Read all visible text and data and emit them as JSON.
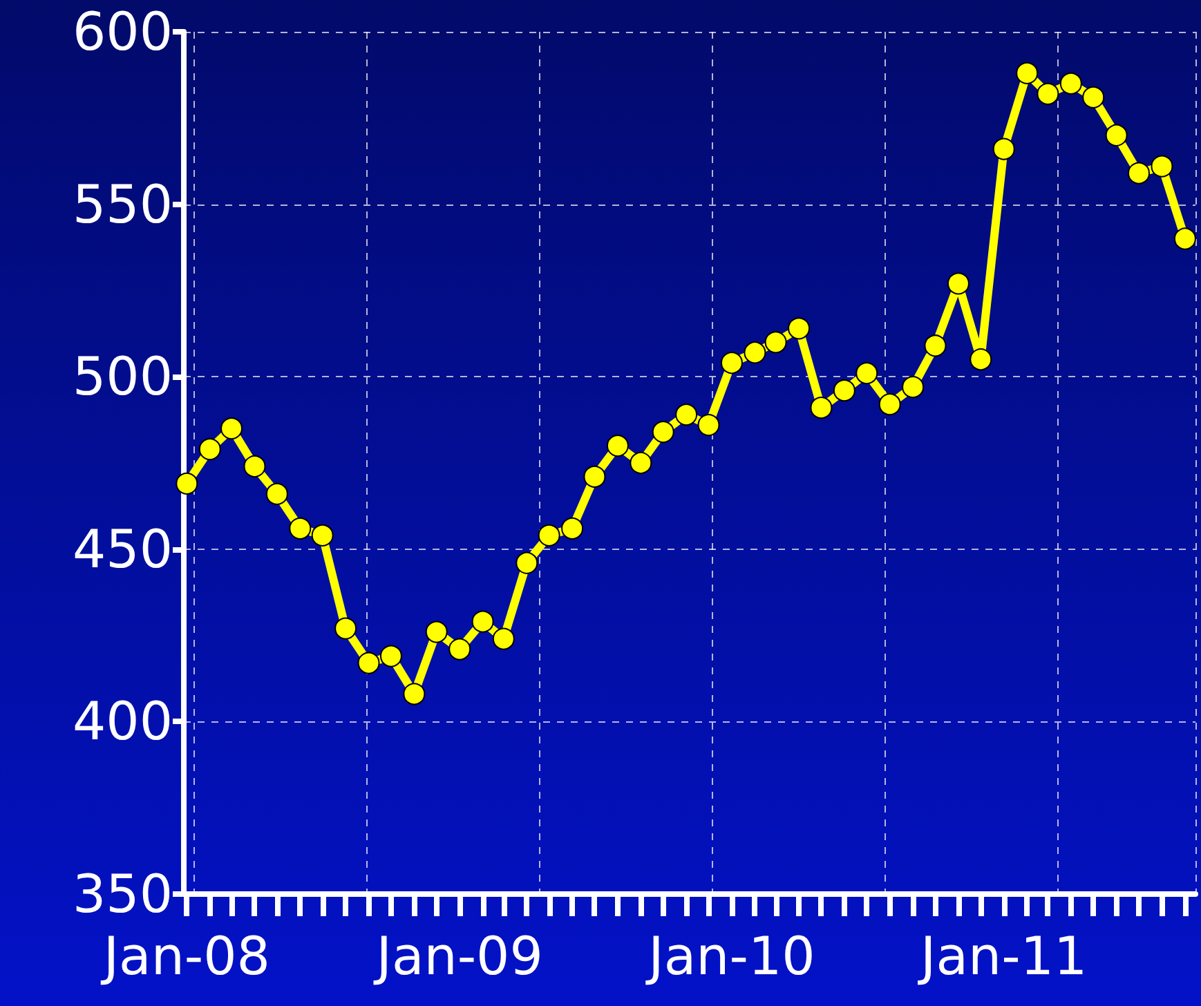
{
  "chart_data": {
    "type": "line",
    "x": [
      "2008-01",
      "2008-02",
      "2008-03",
      "2008-04",
      "2008-05",
      "2008-06",
      "2008-07",
      "2008-08",
      "2008-09",
      "2008-10",
      "2008-11",
      "2008-12",
      "2009-01",
      "2009-02",
      "2009-03",
      "2009-04",
      "2009-05",
      "2009-06",
      "2009-07",
      "2009-08",
      "2009-09",
      "2009-10",
      "2009-11",
      "2009-12",
      "2010-01",
      "2010-02",
      "2010-03",
      "2010-04",
      "2010-05",
      "2010-06",
      "2010-07",
      "2010-08",
      "2010-09",
      "2010-10",
      "2010-11",
      "2010-12",
      "2011-01",
      "2011-02",
      "2011-03",
      "2011-04",
      "2011-05",
      "2011-06",
      "2011-07",
      "2011-08",
      "2011-09"
    ],
    "series": [
      {
        "color": "#ffff00",
        "values": [
          469,
          479,
          485,
          474,
          466,
          456,
          454,
          427,
          417,
          419,
          408,
          426,
          421,
          429,
          424,
          446,
          454,
          456,
          471,
          480,
          475,
          484,
          489,
          486,
          504,
          507,
          510,
          514,
          491,
          496,
          501,
          492,
          497,
          509,
          527,
          505,
          566,
          588,
          582,
          585,
          581,
          570,
          559,
          561,
          540
        ]
      }
    ],
    "xlim": [
      "2007-12-28",
      "2011-09-15"
    ],
    "xticks": [
      {
        "value": "2008-01",
        "label": "Jan-08"
      },
      {
        "value": "2008-02",
        "label": null
      },
      {
        "value": "2008-03",
        "label": null
      },
      {
        "value": "2008-04",
        "label": null
      },
      {
        "value": "2008-05",
        "label": null
      },
      {
        "value": "2008-06",
        "label": null
      },
      {
        "value": "2008-07",
        "label": null
      },
      {
        "value": "2008-08",
        "label": null
      },
      {
        "value": "2008-09",
        "label": null
      },
      {
        "value": "2008-10",
        "label": null
      },
      {
        "value": "2008-11",
        "label": null
      },
      {
        "value": "2008-12",
        "label": null
      },
      {
        "value": "2009-01",
        "label": "Jan-09"
      },
      {
        "value": "2009-02",
        "label": null
      },
      {
        "value": "2009-03",
        "label": null
      },
      {
        "value": "2009-04",
        "label": null
      },
      {
        "value": "2009-05",
        "label": null
      },
      {
        "value": "2009-06",
        "label": null
      },
      {
        "value": "2009-07",
        "label": null
      },
      {
        "value": "2009-08",
        "label": null
      },
      {
        "value": "2009-09",
        "label": null
      },
      {
        "value": "2009-10",
        "label": null
      },
      {
        "value": "2009-11",
        "label": null
      },
      {
        "value": "2009-12",
        "label": null
      },
      {
        "value": "2010-01",
        "label": "Jan-10"
      },
      {
        "value": "2010-02",
        "label": null
      },
      {
        "value": "2010-03",
        "label": null
      },
      {
        "value": "2010-04",
        "label": null
      },
      {
        "value": "2010-05",
        "label": null
      },
      {
        "value": "2010-06",
        "label": null
      },
      {
        "value": "2010-07",
        "label": null
      },
      {
        "value": "2010-08",
        "label": null
      },
      {
        "value": "2010-09",
        "label": null
      },
      {
        "value": "2010-10",
        "label": null
      },
      {
        "value": "2010-11",
        "label": null
      },
      {
        "value": "2010-12",
        "label": null
      },
      {
        "value": "2011-01",
        "label": "Jan-11"
      },
      {
        "value": "2011-02",
        "label": null
      },
      {
        "value": "2011-03",
        "label": null
      },
      {
        "value": "2011-04",
        "label": null
      },
      {
        "value": "2011-05",
        "label": null
      },
      {
        "value": "2011-06",
        "label": null
      },
      {
        "value": "2011-07",
        "label": null
      },
      {
        "value": "2011-08",
        "label": null
      },
      {
        "value": "2011-09",
        "label": null
      }
    ],
    "ylim": [
      350,
      600
    ],
    "yticks": [
      350,
      400,
      450,
      500,
      550,
      600
    ],
    "grid": true,
    "marker": "circle",
    "line_style": "solid"
  }
}
